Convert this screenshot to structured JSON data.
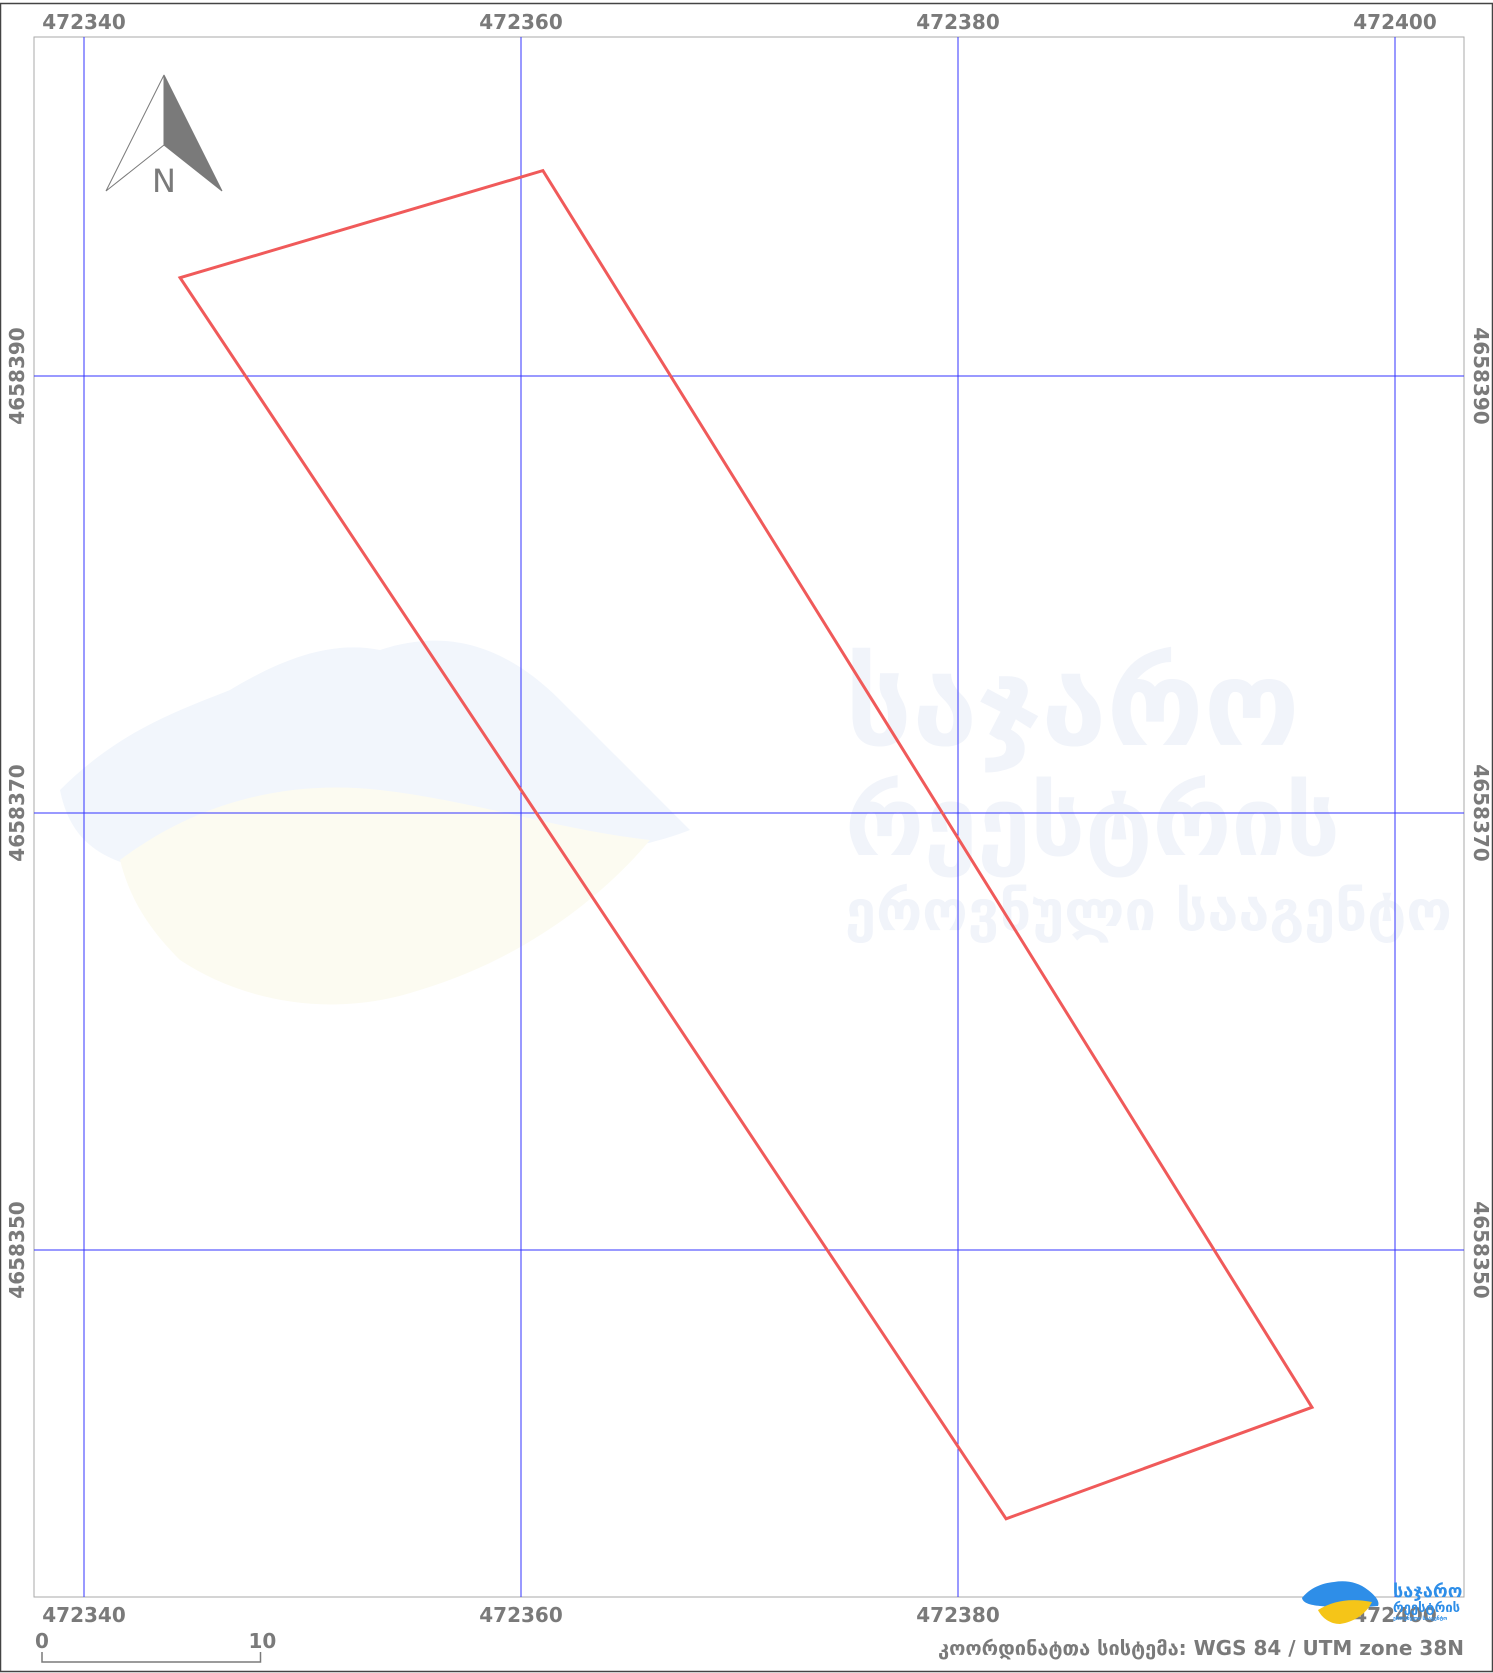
{
  "map": {
    "coordinate_system_label": "კოორდინატთა სისტემა: WGS 84 / UTM zone 38N",
    "grid": {
      "eastings": [
        "472340",
        "472360",
        "472380",
        "472400"
      ],
      "northings": [
        "4658390",
        "4658370",
        "4658350"
      ],
      "line_color": "#3333ff"
    },
    "parcel": {
      "outline_color": "#f05a5a",
      "vertices": [
        {
          "e": 472344.4,
          "n": 4658394.5
        },
        {
          "e": 472361.0,
          "n": 4658399.4
        },
        {
          "e": 472396.2,
          "n": 4658342.8
        },
        {
          "e": 472382.2,
          "n": 4658337.7
        }
      ]
    },
    "north_arrow": {
      "letter": "N",
      "icon": "north-arrow-icon"
    },
    "scale_bar": {
      "start_label": "0",
      "end_label": "10",
      "unit_distance": 10
    },
    "watermark": {
      "line1": "საჯარო",
      "line2": "რეესტრის",
      "line3": "ეროვნული სააგენტო",
      "logo_icon": "georgia-map-logo-icon",
      "colors": [
        "#2e8ee8",
        "#f5c518"
      ]
    },
    "corner_logo": {
      "text_line1": "საჯარო",
      "text_line2": "რეესტრის",
      "text_line3": "ეროვნული სააგენტო",
      "colors": [
        "#2e8ee8",
        "#f5c518"
      ]
    }
  }
}
